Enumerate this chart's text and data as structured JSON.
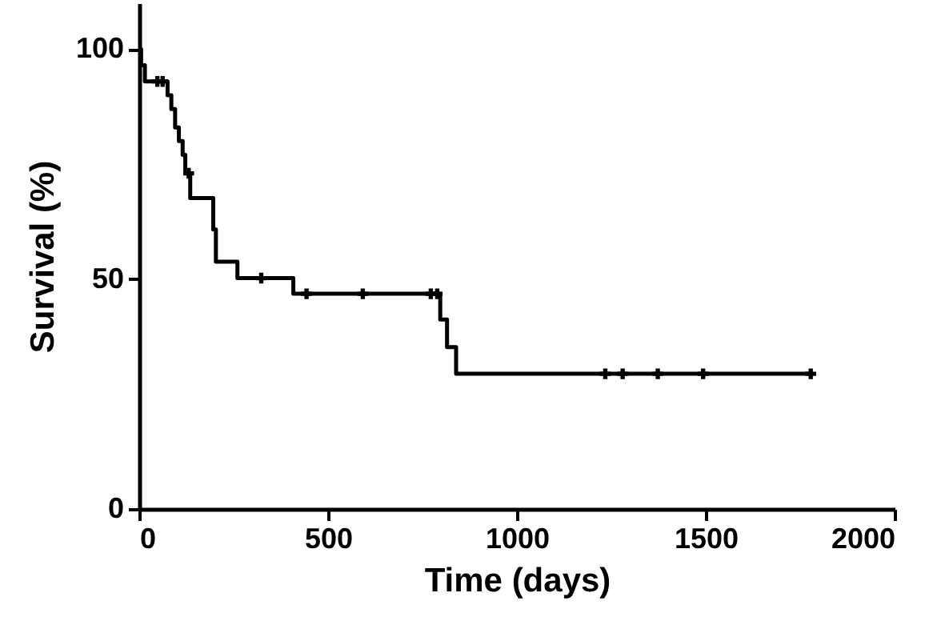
{
  "chart_data": {
    "type": "step",
    "xlabel": "Time (days)",
    "ylabel": "Survival (%)",
    "xlim": [
      0,
      2000
    ],
    "xticks": [
      0,
      500,
      1000,
      1500,
      2000
    ],
    "ylim": [
      0,
      110
    ],
    "yticks": [
      0,
      50,
      100
    ],
    "grid": false,
    "line_style": "solid",
    "series": [
      {
        "color": "#000000",
        "marker": "none",
        "x": [
          0,
          5,
          15,
          75,
          85,
          95,
          105,
          115,
          122,
          135,
          196,
          203,
          260,
          408,
          797,
          815,
          839,
          1778
        ],
        "values": [
          100,
          96.5,
          93,
          90,
          87,
          83,
          80,
          77,
          73,
          67.6,
          60.8,
          53.8,
          50.2,
          46.8,
          41.2,
          35.2,
          29.4,
          29.4
        ]
      },
      {
        "type": "scatter",
        "color": "#000000",
        "marker": "cross",
        "x": [
          48,
          62,
          131,
          323,
          443,
          592,
          772,
          789,
          1234,
          1280,
          1373,
          1493,
          1778
        ],
        "values": [
          93,
          93,
          73,
          50.2,
          46.8,
          46.8,
          46.8,
          46.8,
          29.4,
          29.4,
          29.4,
          29.4,
          29.4
        ]
      }
    ]
  }
}
